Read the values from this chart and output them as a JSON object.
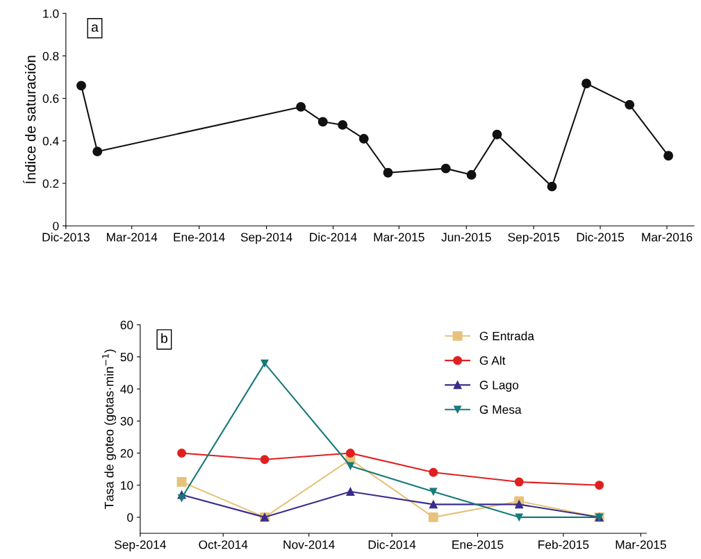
{
  "chart_data": [
    {
      "type": "line",
      "ylabel": "Índice de saturación",
      "annotations": [
        "a"
      ],
      "marker": "circle",
      "grid": false,
      "legend": false,
      "x": [
        "2013-12-22",
        "2014-01-13",
        "2014-10-18",
        "2014-11-17",
        "2014-12-14",
        "2015-01-12",
        "2015-02-14",
        "2015-05-04",
        "2015-06-08",
        "2015-07-13",
        "2015-09-26",
        "2015-11-12",
        "2016-01-10",
        "2016-03-03"
      ],
      "series": [
        {
          "color": "#111111",
          "values": [
            0.66,
            0.35,
            0.56,
            0.49,
            0.475,
            0.41,
            0.25,
            0.27,
            0.24,
            0.43,
            0.185,
            0.67,
            0.57,
            0.33
          ]
        }
      ],
      "xlim": [
        "2013-12-01",
        "2016-04-07"
      ],
      "ylim": [
        0,
        1.0
      ],
      "xticks": [
        {
          "value": "2013-12-01",
          "label": "Dic-2013"
        },
        {
          "value": "2014-03-01",
          "label": "Mar-2014"
        },
        {
          "value": "2014-06-01",
          "label": "Ene-2014"
        },
        {
          "value": "2014-09-01",
          "label": "Sep-2014"
        },
        {
          "value": "2014-12-01",
          "label": "Dic-2014"
        },
        {
          "value": "2015-03-01",
          "label": "Mar-2015"
        },
        {
          "value": "2015-06-01",
          "label": "Jun-2015"
        },
        {
          "value": "2015-09-01",
          "label": "Sep-2015"
        },
        {
          "value": "2015-12-01",
          "label": "Dic-2015"
        },
        {
          "value": "2016-03-01",
          "label": "Mar-2016"
        }
      ],
      "yticks": [
        {
          "value": 0,
          "label": "0"
        },
        0.2,
        0.4,
        0.6,
        0.8,
        {
          "value": 1.0,
          "label": "1.0"
        }
      ]
    },
    {
      "type": "line",
      "ylabel": "Tasa de goteo (gotas·min$^{−1}$)",
      "annotations": [
        "b"
      ],
      "grid": false,
      "legend": "top right",
      "x": [
        "2014-09-16",
        "2014-10-16",
        "2014-11-16",
        "2014-12-16",
        "2015-01-16",
        "2015-02-14"
      ],
      "series": [
        {
          "name": "G Entrada",
          "color": "#e6c27a",
          "marker": "square",
          "values": [
            11,
            0,
            18,
            0,
            5,
            0
          ]
        },
        {
          "name": "G Alt",
          "color": "#e02020",
          "marker": "circle",
          "values": [
            20,
            18,
            20,
            14,
            11,
            10
          ]
        },
        {
          "name": "G Lago",
          "color": "#3a2d8c",
          "marker": "triangle",
          "values": [
            7,
            0,
            8,
            4,
            4,
            0
          ]
        },
        {
          "name": "G Mesa",
          "color": "#17797a",
          "marker": "triangle_down",
          "values": [
            6,
            48,
            16,
            8,
            0,
            0
          ]
        }
      ],
      "xlim": [
        "2014-09-01",
        "2015-03-03"
      ],
      "ylim": [
        -5,
        60
      ],
      "xticks": [
        {
          "value": "2014-09-01",
          "label": "Sep-2014"
        },
        {
          "value": "2014-10-01",
          "label": "Oct-2014"
        },
        {
          "value": "2014-11-01",
          "label": "Nov-2014"
        },
        {
          "value": "2014-12-01",
          "label": "Dic-2014"
        },
        {
          "value": "2015-01-01",
          "label": "Ene-2015"
        },
        {
          "value": "2015-02-01",
          "label": "Feb-2015"
        },
        {
          "value": "2015-03-01",
          "label": "Mar-2015"
        }
      ],
      "yticks": [
        0,
        10,
        20,
        30,
        40,
        50,
        60
      ]
    }
  ]
}
